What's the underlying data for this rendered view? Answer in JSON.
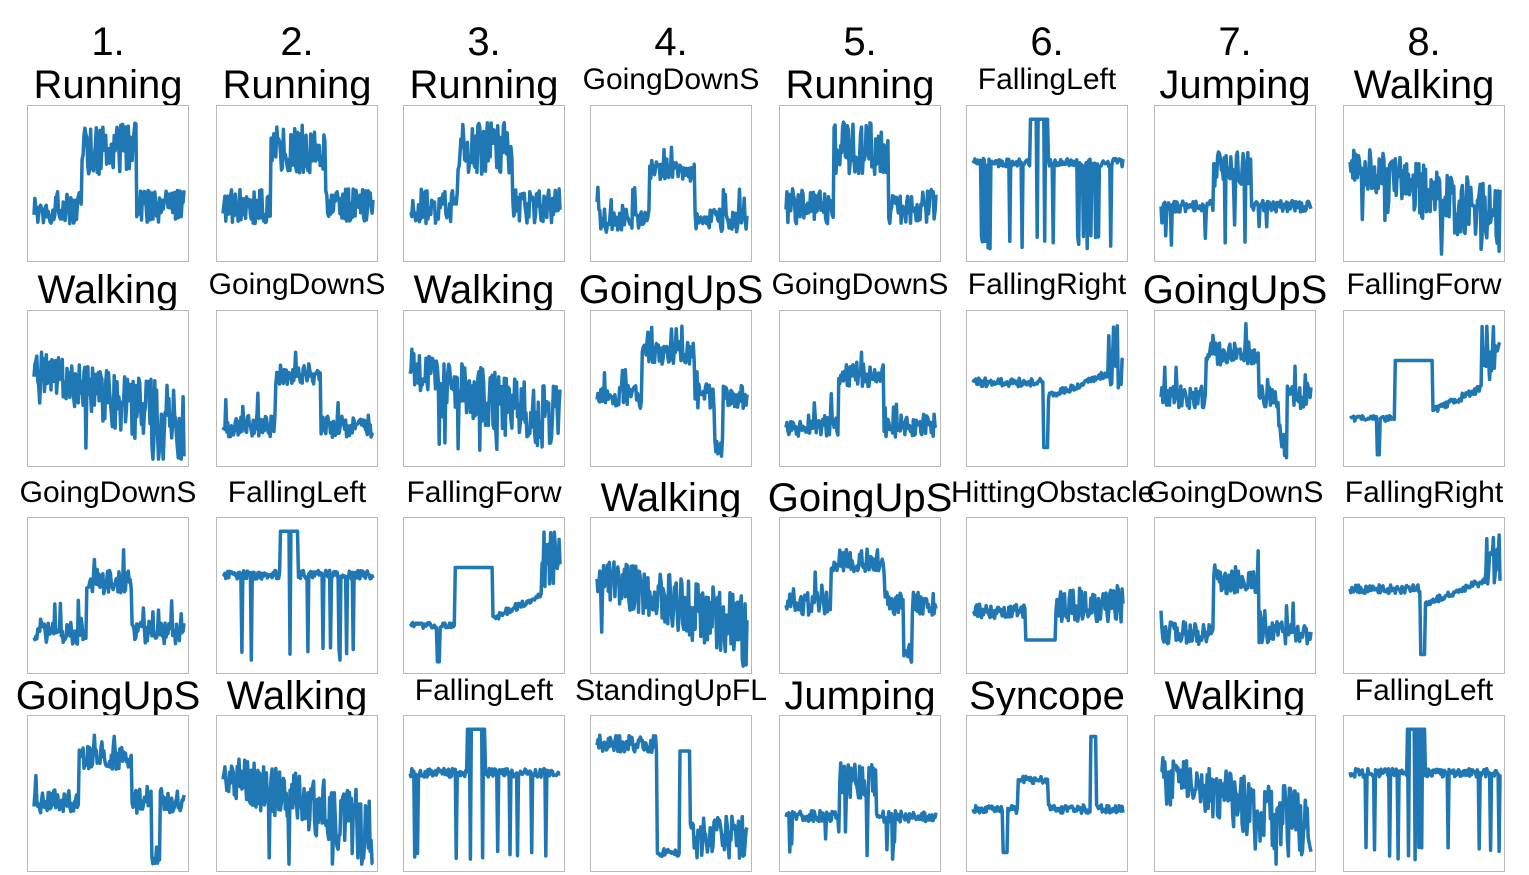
{
  "colors": {
    "series": "#1f77b4",
    "frame": "#b9b9b9",
    "background": "#ffffff"
  },
  "chart_data": {
    "type": "line",
    "grid_rows": 4,
    "grid_cols": 8,
    "columns": [
      {
        "number": "1.",
        "labels": [
          "Running",
          "Walking",
          "GoingDownS",
          "GoingUpS"
        ]
      },
      {
        "number": "2.",
        "labels": [
          "Running",
          "GoingDownS",
          "FallingLeft",
          "Walking"
        ]
      },
      {
        "number": "3.",
        "labels": [
          "Running",
          "Walking",
          "FallingForw",
          "FallingLeft"
        ]
      },
      {
        "number": "4.",
        "labels": [
          "GoingDownS",
          "GoingUpS",
          "Walking",
          "StandingUpFL"
        ]
      },
      {
        "number": "5.",
        "labels": [
          "Running",
          "GoingDownS",
          "GoingUpS",
          "Jumping"
        ]
      },
      {
        "number": "6.",
        "labels": [
          "FallingLeft",
          "FallingRight",
          "HittingObstacle",
          "Syncope"
        ]
      },
      {
        "number": "7.",
        "labels": [
          "Jumping",
          "GoingUpS",
          "GoingDownS",
          "Walking"
        ]
      },
      {
        "number": "8.",
        "labels": [
          "Walking",
          "FallingForw",
          "FallingRight",
          "FallingLeft"
        ]
      }
    ],
    "signal_shapes": {
      "Running": {
        "kind": "noisy_plateau",
        "base": 0.35,
        "plateau": 0.75,
        "start": 0.32,
        "end": 0.68,
        "noise": 0.12,
        "plateau_noise": 0.18
      },
      "Walking": {
        "kind": "noisy_drift",
        "start": 0.65,
        "end": 0.25,
        "noise": 0.22
      },
      "GoingDownS": {
        "kind": "bump",
        "base": 0.25,
        "peak": 0.6,
        "start": 0.35,
        "end": 0.65,
        "noise": 0.08
      },
      "GoingUpS": {
        "kind": "bump",
        "base": 0.45,
        "peak": 0.75,
        "start": 0.3,
        "end": 0.65,
        "noise": 0.08,
        "dip": 0.1
      },
      "FallingLeft": {
        "kind": "falling_left",
        "base": 0.65,
        "top": 0.95
      },
      "FallingRight": {
        "kind": "falling_right",
        "base": 0.55
      },
      "FallingForw": {
        "kind": "falling_forw",
        "base": 0.3
      },
      "Jumping": {
        "kind": "jumping",
        "base": 0.35
      },
      "HittingObstacle": {
        "kind": "hitting",
        "base": 0.4
      },
      "StandingUpFL": {
        "kind": "standing_up",
        "base": 0.85
      },
      "Syncope": {
        "kind": "syncope",
        "base": 0.4
      }
    }
  }
}
